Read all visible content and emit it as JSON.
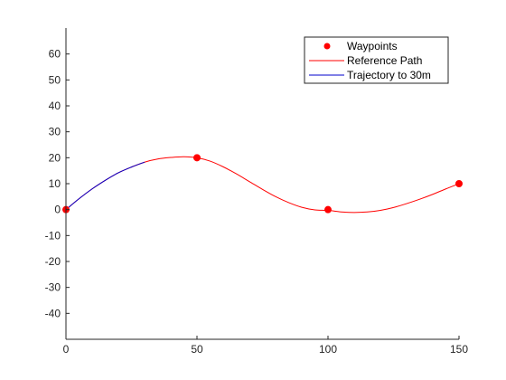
{
  "chart_data": {
    "type": "line",
    "title": "",
    "xlabel": "",
    "ylabel": "",
    "xlim": [
      0,
      150
    ],
    "ylim": [
      -50,
      70
    ],
    "xticks": [
      0,
      50,
      100,
      150
    ],
    "yticks": [
      -40,
      -30,
      -20,
      -10,
      0,
      10,
      20,
      30,
      40,
      50,
      60
    ],
    "xtick_labels": [
      "0",
      "50",
      "100",
      "150"
    ],
    "ytick_labels": [
      "-40",
      "-30",
      "-20",
      "-10",
      "0",
      "10",
      "20",
      "30",
      "40",
      "50",
      "60"
    ],
    "grid": false,
    "legend_position": "top-right",
    "series": [
      {
        "name": "Waypoints",
        "kind": "markers",
        "color": "#ff0000",
        "x": [
          0,
          50,
          100,
          150
        ],
        "y": [
          0,
          20,
          0,
          10
        ]
      },
      {
        "name": "Reference Path",
        "kind": "line",
        "color": "#ff0000",
        "x": [
          0,
          5,
          10,
          15,
          20,
          25,
          30,
          35,
          40,
          45,
          50,
          55,
          60,
          65,
          70,
          75,
          80,
          85,
          90,
          95,
          100,
          105,
          110,
          115,
          120,
          125,
          130,
          135,
          140,
          145,
          150
        ],
        "y": [
          0,
          4.2,
          8,
          11.3,
          14.2,
          16.4,
          18.3,
          19.5,
          20.1,
          20.4,
          20,
          18.7,
          16.5,
          13.8,
          10.8,
          7.8,
          5,
          2.7,
          0.9,
          -0.1,
          -0.3,
          -0.9,
          -1.1,
          -0.9,
          -0.3,
          0.8,
          2.3,
          4,
          5.9,
          8,
          10
        ]
      },
      {
        "name": "Trajectory to 30m",
        "kind": "line",
        "color": "#0000cc",
        "x": [
          0,
          5,
          10,
          15,
          20,
          25,
          30
        ],
        "y": [
          0,
          4.2,
          8,
          11.3,
          14.2,
          16.4,
          18.3
        ]
      }
    ]
  }
}
